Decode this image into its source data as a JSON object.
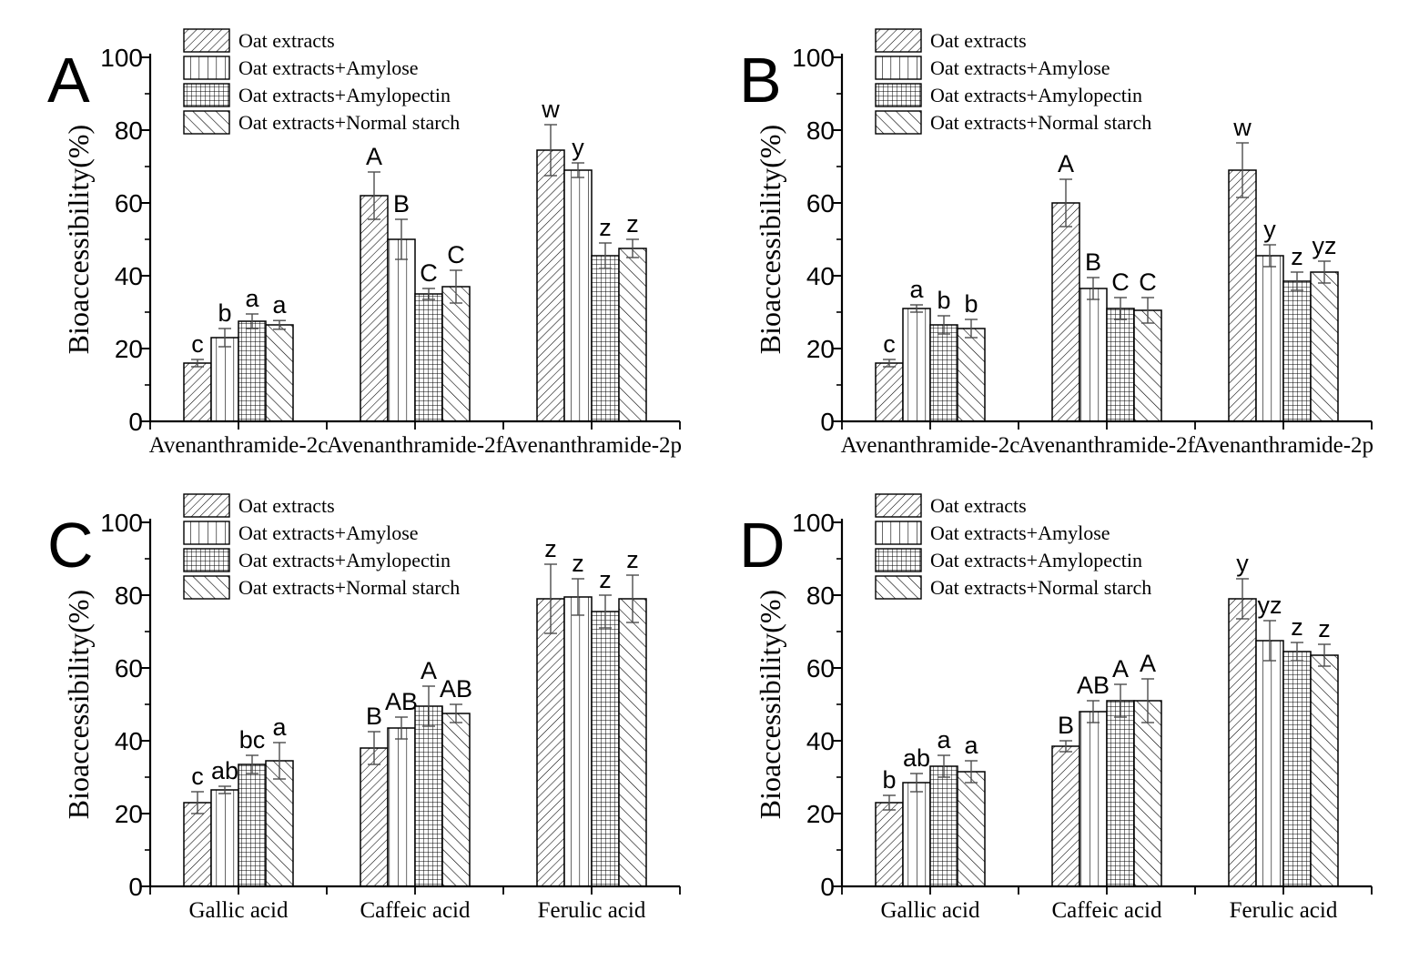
{
  "figure": {
    "background_color": "#ffffff",
    "ink_color": "#000000",
    "error_bar_color": "#4d4d4d",
    "ylabel": "Bioaccessibility(%)",
    "ytick_labels": [
      "0",
      "20",
      "40",
      "60",
      "80",
      "100"
    ],
    "minor_ticks_every": 10,
    "legend": {
      "items": [
        {
          "label": "Oat extracts",
          "pattern": "diagonal-forward-hatch"
        },
        {
          "label": "Oat extracts+Amylose",
          "pattern": "vertical-lines"
        },
        {
          "label": "Oat extracts+Amylopectin",
          "pattern": "grid-crosshatch"
        },
        {
          "label": "Oat extracts+Normal starch",
          "pattern": "diagonal-back-hatch"
        }
      ]
    }
  },
  "chart_data": [
    {
      "type": "bar",
      "panel_label": "A",
      "title": "",
      "xlabel": "",
      "ylabel": "Bioaccessibility(%)",
      "ylim": [
        0,
        100
      ],
      "grid": false,
      "legend_position": "top-left-inside",
      "categories": [
        "Avenanthramide-2c",
        "Avenanthramide-2f",
        "Avenanthramide-2p"
      ],
      "series": [
        {
          "name": "Oat extracts",
          "pattern": "diagonal-forward-hatch",
          "values": [
            16,
            62,
            74.5
          ],
          "errors": [
            1,
            6.5,
            7
          ],
          "sig_letters": [
            "c",
            "A",
            "w"
          ]
        },
        {
          "name": "Oat extracts+Amylose",
          "pattern": "vertical-lines",
          "values": [
            23,
            50,
            69
          ],
          "errors": [
            2.5,
            5.5,
            2
          ],
          "sig_letters": [
            "b",
            "B",
            "y"
          ]
        },
        {
          "name": "Oat extracts+Amylopectin",
          "pattern": "grid-crosshatch",
          "values": [
            27.5,
            35,
            45.5
          ],
          "errors": [
            2,
            1.5,
            3.5
          ],
          "sig_letters": [
            "a",
            "C",
            "z"
          ]
        },
        {
          "name": "Oat extracts+Normal starch",
          "pattern": "diagonal-back-hatch",
          "values": [
            26.5,
            37,
            47.5
          ],
          "errors": [
            1.2,
            4.5,
            2.5
          ],
          "sig_letters": [
            "a",
            "C",
            "z"
          ]
        }
      ]
    },
    {
      "type": "bar",
      "panel_label": "B",
      "title": "",
      "xlabel": "",
      "ylabel": "Bioaccessibility(%)",
      "ylim": [
        0,
        100
      ],
      "grid": false,
      "legend_position": "top-left-inside",
      "categories": [
        "Avenanthramide-2c",
        "Avenanthramide-2f",
        "Avenanthramide-2p"
      ],
      "series": [
        {
          "name": "Oat extracts",
          "pattern": "diagonal-forward-hatch",
          "values": [
            16,
            60,
            69
          ],
          "errors": [
            1,
            6.5,
            7.5
          ],
          "sig_letters": [
            "c",
            "A",
            "w"
          ]
        },
        {
          "name": "Oat extracts+Amylose",
          "pattern": "vertical-lines",
          "values": [
            31,
            36.5,
            45.5
          ],
          "errors": [
            1,
            3,
            3
          ],
          "sig_letters": [
            "a",
            "B",
            "y"
          ]
        },
        {
          "name": "Oat extracts+Amylopectin",
          "pattern": "grid-crosshatch",
          "values": [
            26.5,
            31,
            38.5
          ],
          "errors": [
            2.5,
            3,
            2.5
          ],
          "sig_letters": [
            "b",
            "C",
            "z"
          ]
        },
        {
          "name": "Oat extracts+Normal starch",
          "pattern": "diagonal-back-hatch",
          "values": [
            25.5,
            30.5,
            41
          ],
          "errors": [
            2.5,
            3.5,
            3
          ],
          "sig_letters": [
            "b",
            "C",
            "yz"
          ]
        }
      ]
    },
    {
      "type": "bar",
      "panel_label": "C",
      "title": "",
      "xlabel": "",
      "ylabel": "Bioaccessibility(%)",
      "ylim": [
        0,
        100
      ],
      "grid": false,
      "legend_position": "top-left-inside",
      "categories": [
        "Gallic acid",
        "Caffeic acid",
        "Ferulic acid"
      ],
      "series": [
        {
          "name": "Oat extracts",
          "pattern": "diagonal-forward-hatch",
          "values": [
            23,
            38,
            79
          ],
          "errors": [
            3,
            4.5,
            9.5
          ],
          "sig_letters": [
            "c",
            "B",
            "z"
          ]
        },
        {
          "name": "Oat extracts+Amylose",
          "pattern": "vertical-lines",
          "values": [
            26.5,
            43.5,
            79.5
          ],
          "errors": [
            1,
            3,
            5
          ],
          "sig_letters": [
            "ab",
            "AB",
            "z"
          ]
        },
        {
          "name": "Oat extracts+Amylopectin",
          "pattern": "grid-crosshatch",
          "values": [
            33.5,
            49.5,
            75.5
          ],
          "errors": [
            2.5,
            5.5,
            4.5
          ],
          "sig_letters": [
            "bc",
            "A",
            "z"
          ]
        },
        {
          "name": "Oat extracts+Normal starch",
          "pattern": "diagonal-back-hatch",
          "values": [
            34.5,
            47.5,
            79
          ],
          "errors": [
            5,
            2.5,
            6.5
          ],
          "sig_letters": [
            "a",
            "AB",
            "z"
          ]
        }
      ]
    },
    {
      "type": "bar",
      "panel_label": "D",
      "title": "",
      "xlabel": "",
      "ylabel": "Bioaccessibility(%)",
      "ylim": [
        0,
        100
      ],
      "grid": false,
      "legend_position": "top-left-inside",
      "categories": [
        "Gallic acid",
        "Caffeic acid",
        "Ferulic acid"
      ],
      "series": [
        {
          "name": "Oat extracts",
          "pattern": "diagonal-forward-hatch",
          "values": [
            23,
            38.5,
            79
          ],
          "errors": [
            2,
            1.5,
            5.5
          ],
          "sig_letters": [
            "b",
            "B",
            "y"
          ]
        },
        {
          "name": "Oat extracts+Amylose",
          "pattern": "vertical-lines",
          "values": [
            28.5,
            48,
            67.5
          ],
          "errors": [
            2.5,
            3,
            5.5
          ],
          "sig_letters": [
            "ab",
            "AB",
            "yz"
          ]
        },
        {
          "name": "Oat extracts+Amylopectin",
          "pattern": "grid-crosshatch",
          "values": [
            33,
            51,
            64.5
          ],
          "errors": [
            3,
            4.5,
            2.5
          ],
          "sig_letters": [
            "a",
            "A",
            "z"
          ]
        },
        {
          "name": "Oat extracts+Normal starch",
          "pattern": "diagonal-back-hatch",
          "values": [
            31.5,
            51,
            63.5
          ],
          "errors": [
            3,
            6,
            3
          ],
          "sig_letters": [
            "a",
            "A",
            "z"
          ]
        }
      ]
    }
  ]
}
